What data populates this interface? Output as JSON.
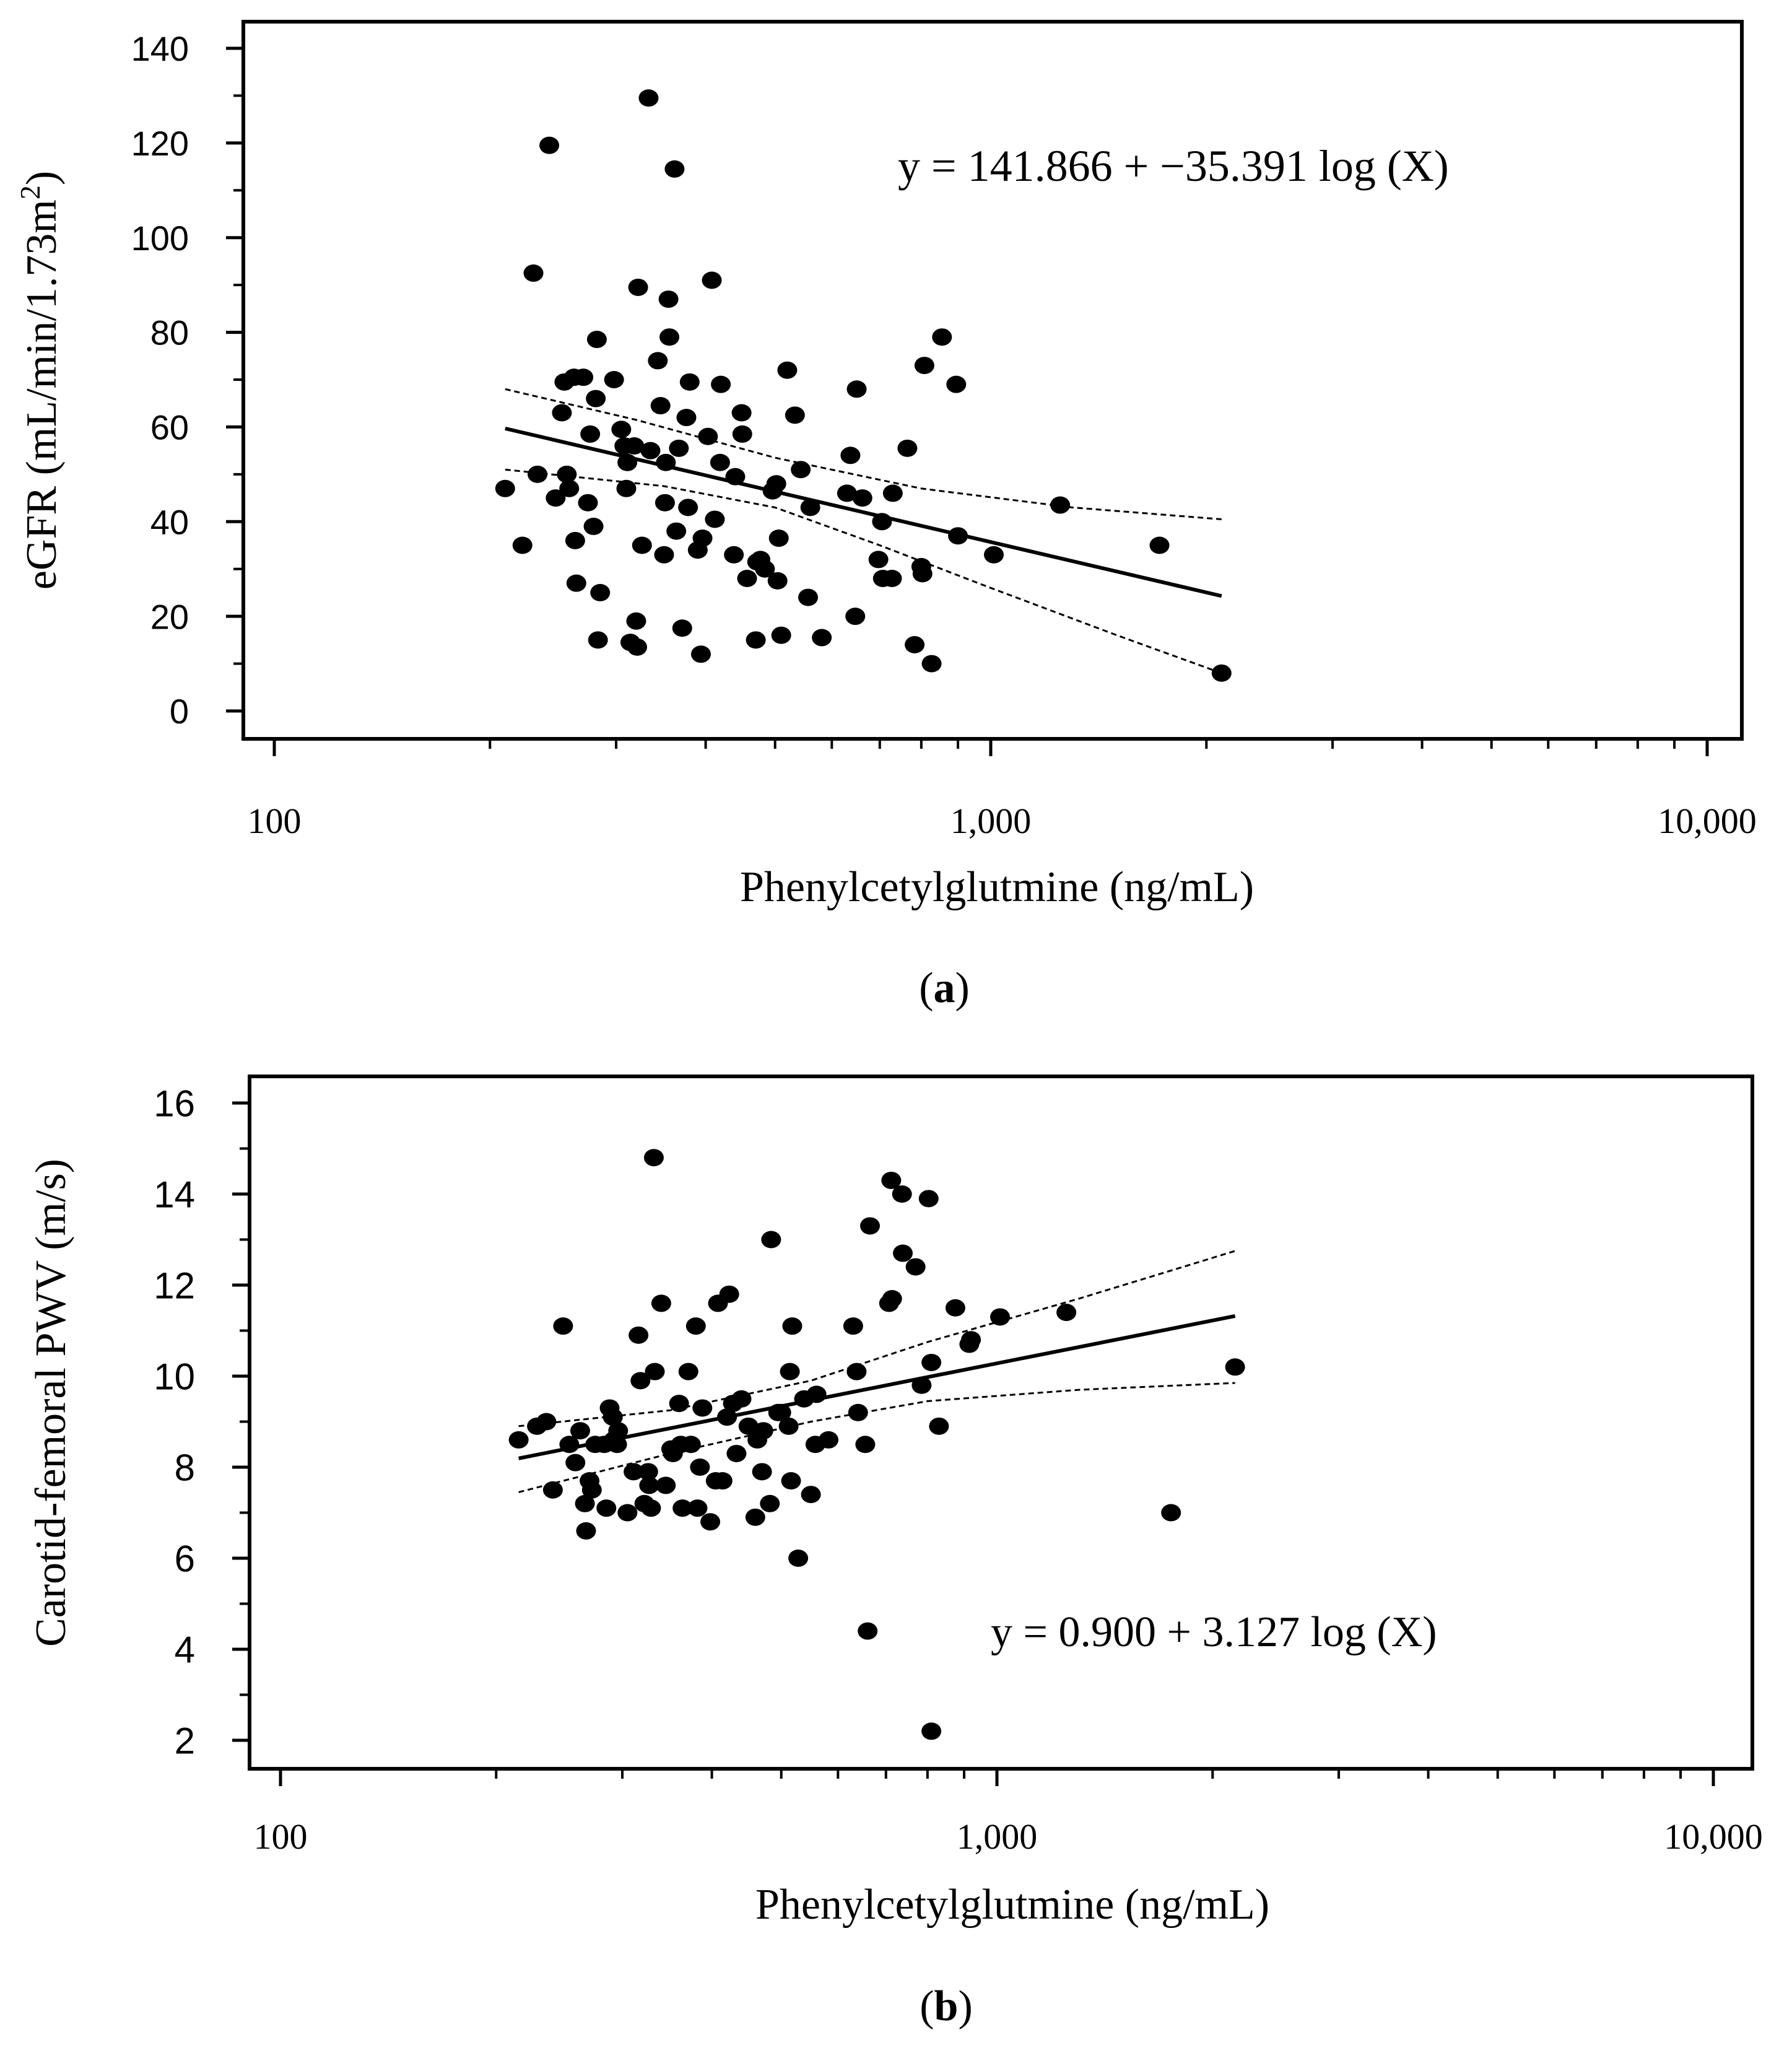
{
  "chart_data": [
    {
      "type": "scatter",
      "panel_label": "a",
      "x_scale": "log",
      "xlim": [
        100,
        10000
      ],
      "ylim": [
        0,
        140
      ],
      "xlabel": "Phenylcetylglutmine (ng/mL)",
      "ylabel_main": "eGFR (mL/min/1.73m",
      "ylabel_sup": "2",
      "ylabel_end": ")",
      "x_ticks": [
        100,
        1000,
        10000
      ],
      "x_tick_labels": [
        "100",
        "1,000",
        "10,000"
      ],
      "y_ticks": [
        0,
        20,
        40,
        60,
        80,
        100,
        120,
        140
      ],
      "y_tick_labels": [
        "0",
        "20",
        "40",
        "60",
        "80",
        "100",
        "120",
        "140"
      ],
      "equation": "y = 141.866 + −35.391 log (X)",
      "regression": {
        "intercept": 141.866,
        "slope": -35.391,
        "x_range": [
          210,
          2100
        ]
      },
      "ci_upper": [
        [
          210,
          68
        ],
        [
          320,
          61.5
        ],
        [
          500,
          53.5
        ],
        [
          800,
          47
        ],
        [
          1300,
          43
        ],
        [
          2100,
          40.5
        ]
      ],
      "ci_lower": [
        [
          210,
          51
        ],
        [
          350,
          47.5
        ],
        [
          500,
          43
        ],
        [
          700,
          35
        ],
        [
          1000,
          26
        ],
        [
          1500,
          16
        ],
        [
          2100,
          8
        ]
      ],
      "points": [
        [
          210,
          47
        ],
        [
          222,
          35
        ],
        [
          230,
          92.5
        ],
        [
          233,
          50
        ],
        [
          242,
          119.5
        ],
        [
          247,
          45
        ],
        [
          252,
          63
        ],
        [
          254,
          69.5
        ],
        [
          256,
          50
        ],
        [
          258,
          47
        ],
        [
          262,
          70.5
        ],
        [
          263,
          36
        ],
        [
          264,
          27
        ],
        [
          270,
          70.5
        ],
        [
          274,
          44
        ],
        [
          276,
          58.5
        ],
        [
          279,
          39
        ],
        [
          281,
          66
        ],
        [
          282,
          78.5
        ],
        [
          285,
          25
        ],
        [
          283,
          15
        ],
        [
          298,
          70
        ],
        [
          305,
          59.5
        ],
        [
          308,
          56
        ],
        [
          310,
          47
        ],
        [
          311,
          52.5
        ],
        [
          314,
          14.5
        ],
        [
          318,
          56
        ],
        [
          321,
          13.5
        ],
        [
          320,
          19
        ],
        [
          322,
          89.5
        ],
        [
          326,
          35
        ],
        [
          333,
          129.5
        ],
        [
          335,
          55
        ],
        [
          343,
          74
        ],
        [
          346,
          64.5
        ],
        [
          350,
          33
        ],
        [
          351,
          44
        ],
        [
          352,
          52.5
        ],
        [
          355,
          87
        ],
        [
          356,
          79
        ],
        [
          362,
          114.5
        ],
        [
          364,
          38
        ],
        [
          367,
          55.5
        ],
        [
          371,
          17.5
        ],
        [
          376,
          62
        ],
        [
          378,
          43
        ],
        [
          380,
          69.5
        ],
        [
          390,
          34
        ],
        [
          394,
          12
        ],
        [
          396,
          36.5
        ],
        [
          403,
          58
        ],
        [
          408,
          91
        ],
        [
          412,
          40.5
        ],
        [
          419,
          52.5
        ],
        [
          420,
          69
        ],
        [
          440,
          49.5
        ],
        [
          438,
          33
        ],
        [
          449,
          63
        ],
        [
          450,
          58.5
        ],
        [
          457,
          28
        ],
        [
          470,
          15
        ],
        [
          472,
          31.5
        ],
        [
          477,
          32
        ],
        [
          484,
          30
        ],
        [
          496,
          46.5
        ],
        [
          502,
          48
        ],
        [
          506,
          36.5
        ],
        [
          504,
          27.5
        ],
        [
          510,
          16
        ],
        [
          520,
          72
        ],
        [
          533,
          62.5
        ],
        [
          543,
          51
        ],
        [
          556,
          24
        ],
        [
          560,
          43
        ],
        [
          581,
          15.5
        ],
        [
          630,
          46
        ],
        [
          637,
          54
        ],
        [
          647,
          20
        ],
        [
          650,
          68
        ],
        [
          662,
          45
        ],
        [
          697,
          32
        ],
        [
          705,
          40
        ],
        [
          707,
          28
        ],
        [
          728,
          28
        ],
        [
          730,
          46
        ],
        [
          765,
          55.5
        ],
        [
          783,
          14
        ],
        [
          800,
          30.5
        ],
        [
          803,
          29
        ],
        [
          808,
          73
        ],
        [
          827,
          10
        ],
        [
          855,
          79
        ],
        [
          895,
          69
        ],
        [
          900,
          37
        ],
        [
          1010,
          33
        ],
        [
          1250,
          43.5
        ],
        [
          1720,
          35
        ],
        [
          2100,
          8
        ]
      ]
    },
    {
      "type": "scatter",
      "panel_label": "b",
      "x_scale": "log",
      "xlim": [
        100,
        10000
      ],
      "ylim": [
        2,
        16
      ],
      "xlabel": "Phenylcetylglutmine (ng/mL)",
      "ylabel_main": "Carotid-femoral PWV (m/s)",
      "ylabel_sup": "",
      "ylabel_end": "",
      "x_ticks": [
        100,
        1000,
        10000
      ],
      "x_tick_labels": [
        "100",
        "1,000",
        "10,000"
      ],
      "y_ticks": [
        2,
        4,
        6,
        8,
        10,
        12,
        14,
        16
      ],
      "y_tick_labels": [
        "2",
        "4",
        "6",
        "8",
        "10",
        "12",
        "14",
        "16"
      ],
      "equation": "y = 0.900 + 3.127 log (X)",
      "regression": {
        "intercept": 0.9,
        "slope": 3.127,
        "x_range": [
          215,
          2150
        ]
      },
      "ci_upper": [
        [
          215,
          8.9
        ],
        [
          350,
          9.25
        ],
        [
          550,
          9.9
        ],
        [
          800,
          10.75
        ],
        [
          1300,
          11.7
        ],
        [
          2150,
          12.75
        ]
      ],
      "ci_lower": [
        [
          215,
          7.45
        ],
        [
          350,
          8.3
        ],
        [
          550,
          9.0
        ],
        [
          800,
          9.45
        ],
        [
          1300,
          9.7
        ],
        [
          2150,
          9.85
        ]
      ],
      "points": [
        [
          215,
          8.6
        ],
        [
          228,
          8.9
        ],
        [
          235,
          9
        ],
        [
          240,
          7.5
        ],
        [
          248,
          11.1
        ],
        [
          253,
          8.5
        ],
        [
          258,
          8.1
        ],
        [
          262,
          8.8
        ],
        [
          266,
          7.2
        ],
        [
          267,
          6.6
        ],
        [
          270,
          7.7
        ],
        [
          272,
          7.5
        ],
        [
          275,
          8.5
        ],
        [
          283,
          8.5
        ],
        [
          285,
          7.1
        ],
        [
          288,
          9.3
        ],
        [
          291,
          9.1
        ],
        [
          292,
          8.6
        ],
        [
          295,
          8.5
        ],
        [
          296,
          8.8
        ],
        [
          305,
          7
        ],
        [
          311,
          7.9
        ],
        [
          316,
          10.9
        ],
        [
          318,
          9.9
        ],
        [
          322,
          7.2
        ],
        [
          326,
          7.9
        ],
        [
          327,
          7.6
        ],
        [
          329,
          7.1
        ],
        [
          332,
          14.8
        ],
        [
          333,
          10.1
        ],
        [
          340,
          11.6
        ],
        [
          345,
          7.6
        ],
        [
          351,
          8.4
        ],
        [
          353,
          8.3
        ],
        [
          360,
          9.4
        ],
        [
          362,
          8.5
        ],
        [
          364,
          7.1
        ],
        [
          371,
          10.1
        ],
        [
          374,
          8.5
        ],
        [
          380,
          11.1
        ],
        [
          382,
          7.1
        ],
        [
          385,
          8
        ],
        [
          388,
          9.3
        ],
        [
          398,
          6.8
        ],
        [
          405,
          7.7
        ],
        [
          408,
          11.6
        ],
        [
          414,
          7.7
        ],
        [
          420,
          9.1
        ],
        [
          423,
          11.8
        ],
        [
          428,
          9.4
        ],
        [
          433,
          8.3
        ],
        [
          440,
          9.5
        ],
        [
          450,
          8.9
        ],
        [
          460,
          6.9
        ],
        [
          463,
          8.6
        ],
        [
          470,
          7.9
        ],
        [
          472,
          8.8
        ],
        [
          482,
          7.2
        ],
        [
          484,
          13
        ],
        [
          495,
          9.2
        ],
        [
          500,
          9.2
        ],
        [
          512,
          8.9
        ],
        [
          514,
          10.1
        ],
        [
          516,
          7.7
        ],
        [
          518,
          11.1
        ],
        [
          528,
          6
        ],
        [
          538,
          9.5
        ],
        [
          550,
          7.4
        ],
        [
          558,
          8.5
        ],
        [
          560,
          9.6
        ],
        [
          582,
          8.6
        ],
        [
          630,
          11.1
        ],
        [
          637,
          10.1
        ],
        [
          640,
          9.2
        ],
        [
          655,
          8.5
        ],
        [
          660,
          4.4
        ],
        [
          665,
          13.3
        ],
        [
          707,
          11.6
        ],
        [
          712,
          14.3
        ],
        [
          714,
          11.7
        ],
        [
          737,
          14
        ],
        [
          739,
          12.7
        ],
        [
          770,
          12.4
        ],
        [
          785,
          9.8
        ],
        [
          803,
          13.9
        ],
        [
          810,
          2.2
        ],
        [
          810,
          10.3
        ],
        [
          830,
          8.9
        ],
        [
          875,
          11.5
        ],
        [
          915,
          10.7
        ],
        [
          920,
          10.8
        ],
        [
          1010,
          11.3
        ],
        [
          1250,
          11.4
        ],
        [
          1750,
          7
        ],
        [
          2150,
          10.2
        ]
      ]
    }
  ]
}
